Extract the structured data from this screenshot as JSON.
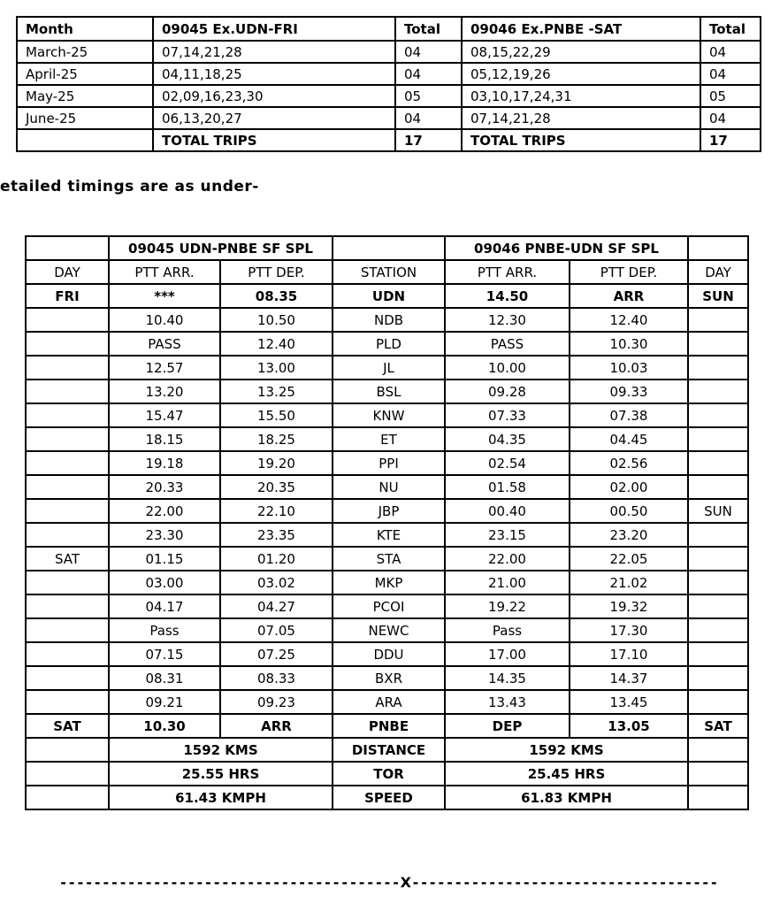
{
  "schedule_table": {
    "headers": [
      "Month",
      "09045 Ex.UDN-FRI",
      "Total",
      "09046 Ex.PNBE -SAT",
      "Total"
    ],
    "rows": [
      {
        "cells": [
          "March-25",
          "07,14,21,28",
          "04",
          "08,15,22,29",
          "04"
        ],
        "bold": false
      },
      {
        "cells": [
          "April-25",
          "04,11,18,25",
          "04",
          "05,12,19,26",
          "04"
        ],
        "bold": false
      },
      {
        "cells": [
          "May-25",
          "02,09,16,23,30",
          "05",
          "03,10,17,24,31",
          "05"
        ],
        "bold": false
      },
      {
        "cells": [
          "June-25",
          "06,13,20,27",
          "04",
          "07,14,21,28",
          "04"
        ],
        "bold": false
      },
      {
        "cells": [
          "",
          "TOTAL TRIPS",
          "17",
          "TOTAL TRIPS",
          "17"
        ],
        "bold": true
      }
    ]
  },
  "intro_text": "etailed timings are as under-",
  "timing_table": {
    "train_headers": {
      "left": "09045 UDN-PNBE SF SPL",
      "right": "09046 PNBE-UDN SF SPL"
    },
    "column_headers": [
      "DAY",
      "PTT ARR.",
      "PTT DEP.",
      "STATION",
      "PTT ARR.",
      "PTT  DEP.",
      "DAY"
    ],
    "rows": [
      {
        "cells": [
          "FRI",
          "***",
          "08.35",
          "UDN",
          "14.50",
          "ARR",
          "SUN"
        ],
        "bold": true
      },
      {
        "cells": [
          "",
          "10.40",
          "10.50",
          "NDB",
          "12.30",
          "12.40",
          ""
        ],
        "bold": false
      },
      {
        "cells": [
          "",
          "PASS",
          "12.40",
          "PLD",
          "PASS",
          "10.30",
          ""
        ],
        "bold": false
      },
      {
        "cells": [
          "",
          "12.57",
          "13.00",
          "JL",
          "10.00",
          "10.03",
          ""
        ],
        "bold": false
      },
      {
        "cells": [
          "",
          "13.20",
          "13.25",
          "BSL",
          "09.28",
          "09.33",
          ""
        ],
        "bold": false
      },
      {
        "cells": [
          "",
          "15.47",
          "15.50",
          "KNW",
          "07.33",
          "07.38",
          ""
        ],
        "bold": false
      },
      {
        "cells": [
          "",
          "18.15",
          "18.25",
          "ET",
          "04.35",
          "04.45",
          ""
        ],
        "bold": false
      },
      {
        "cells": [
          "",
          "19.18",
          "19.20",
          "PPI",
          "02.54",
          "02.56",
          ""
        ],
        "bold": false
      },
      {
        "cells": [
          "",
          "20.33",
          "20.35",
          "NU",
          "01.58",
          "02.00",
          ""
        ],
        "bold": false
      },
      {
        "cells": [
          "",
          "22.00",
          "22.10",
          "JBP",
          "00.40",
          "00.50",
          "SUN"
        ],
        "bold": false
      },
      {
        "cells": [
          "",
          "23.30",
          "23.35",
          "KTE",
          "23.15",
          "23.20",
          ""
        ],
        "bold": false
      },
      {
        "cells": [
          "SAT",
          "01.15",
          "01.20",
          "STA",
          "22.00",
          "22.05",
          ""
        ],
        "bold": false
      },
      {
        "cells": [
          "",
          "03.00",
          "03.02",
          "MKP",
          "21.00",
          "21.02",
          ""
        ],
        "bold": false
      },
      {
        "cells": [
          "",
          "04.17",
          "04.27",
          "PCOI",
          "19.22",
          "19.32",
          ""
        ],
        "bold": false
      },
      {
        "cells": [
          "",
          "Pass",
          "07.05",
          "NEWC",
          "Pass",
          "17.30",
          ""
        ],
        "bold": false
      },
      {
        "cells": [
          "",
          "07.15",
          "07.25",
          "DDU",
          "17.00",
          "17.10",
          ""
        ],
        "bold": false
      },
      {
        "cells": [
          "",
          "08.31",
          "08.33",
          "BXR",
          "14.35",
          "14.37",
          ""
        ],
        "bold": false
      },
      {
        "cells": [
          "",
          "09.21",
          "09.23",
          "ARA",
          "13.43",
          "13.45",
          ""
        ],
        "bold": false
      },
      {
        "cells": [
          "SAT",
          "10.30",
          "ARR",
          "PNBE",
          "DEP",
          "13.05",
          "SAT"
        ],
        "bold": true
      }
    ],
    "summary_rows": [
      {
        "left": "1592 KMS",
        "label": "DISTANCE",
        "right": "1592 KMS"
      },
      {
        "left": "25.55 HRS",
        "label": "TOR",
        "right": "25.45 HRS"
      },
      {
        "left": "61.43 KMPH",
        "label": "SPEED",
        "right": "61.83 KMPH"
      }
    ]
  },
  "footer_divider": "----------------------------------------X------------------------------------"
}
